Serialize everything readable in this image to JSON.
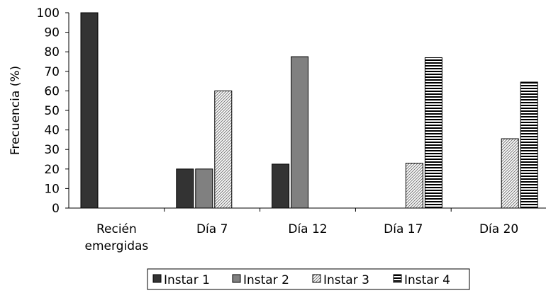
{
  "chart_data": {
    "type": "bar",
    "ylabel": "Frecuencia (%)",
    "xlabel": "",
    "ylim": [
      0,
      100
    ],
    "yticks": [
      0,
      10,
      20,
      30,
      40,
      50,
      60,
      70,
      80,
      90,
      100
    ],
    "categories": [
      [
        "Recién",
        "emergidas"
      ],
      [
        "Día 7"
      ],
      [
        "Día 12"
      ],
      [
        "Día 17"
      ],
      [
        "Día 20"
      ]
    ],
    "series": [
      {
        "name": "Instar 1",
        "fill": "#333333",
        "pattern": "solid-dark",
        "values": [
          100,
          20,
          22.5,
          0,
          0
        ]
      },
      {
        "name": "Instar 2",
        "fill": "#808080",
        "pattern": "solid-gray",
        "values": [
          0,
          20,
          77.5,
          0,
          0
        ]
      },
      {
        "name": "Instar 3",
        "fill": "#ffffff",
        "pattern": "diagonal-hatch",
        "values": [
          0,
          60,
          0,
          23,
          35.5
        ]
      },
      {
        "name": "Instar 4",
        "fill": "#ffffff",
        "pattern": "horizontal-stripes",
        "values": [
          0,
          0,
          0,
          77,
          64.5
        ]
      }
    ],
    "legend_position": "bottom",
    "grid": false
  }
}
